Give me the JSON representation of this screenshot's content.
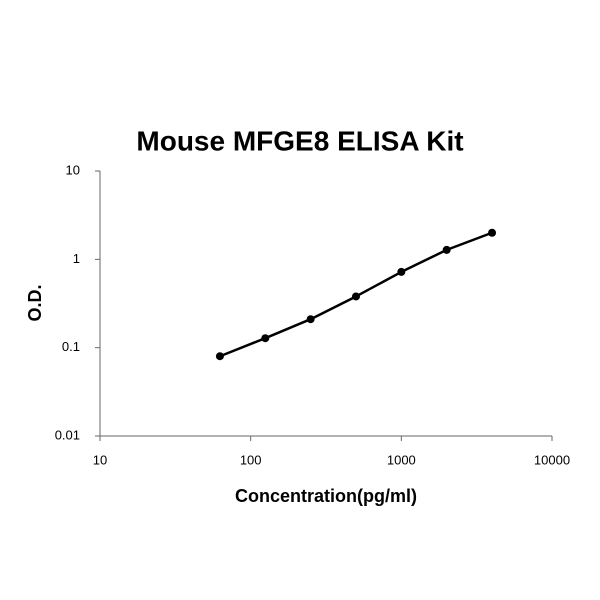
{
  "chart_data": {
    "type": "line",
    "title": "Mouse MFGE8 ELISA Kit",
    "x_label": "Concentration(pg/ml)",
    "y_label": "O.D.",
    "x": [
      62.5,
      125,
      250,
      500,
      1000,
      2000,
      4000
    ],
    "series": [
      {
        "name": "O.D.",
        "color": "#000000",
        "values": [
          0.08,
          0.128,
          0.21,
          0.38,
          0.72,
          1.28,
          2.0
        ]
      }
    ],
    "x_log": true,
    "y_log": true,
    "xlim": [
      10,
      10000
    ],
    "ylim": [
      0.01,
      10
    ],
    "xticks": [
      10,
      100,
      1000,
      10000
    ],
    "yticks": [
      0.01,
      0.1,
      1,
      10
    ],
    "grid": false
  }
}
